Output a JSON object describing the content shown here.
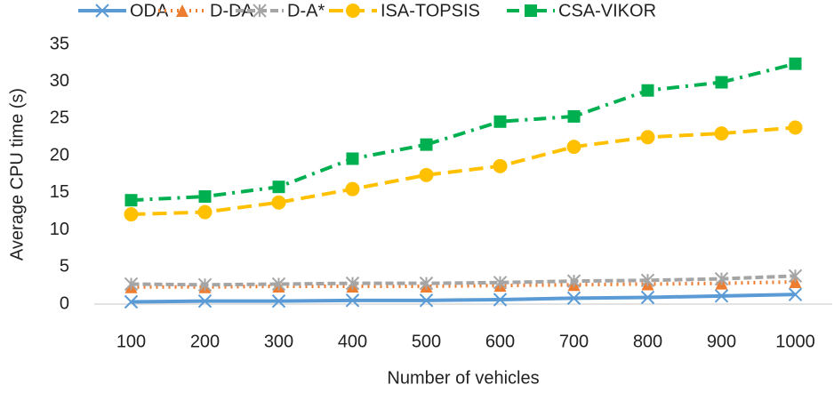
{
  "chart_data": {
    "type": "line",
    "x_label": "Number of vehicles",
    "y_label": "Average CPU time (s)",
    "categories": [
      "100",
      "200",
      "300",
      "400",
      "500",
      "600",
      "700",
      "800",
      "900",
      "1000"
    ],
    "ylim": [
      0,
      35
    ],
    "yticks": [
      0,
      5,
      10,
      15,
      20,
      25,
      30,
      35
    ],
    "grid": false,
    "legend": "top",
    "series": [
      {
        "name": "ODA",
        "color": "#5b9bd5",
        "dash": "solid",
        "marker": "x",
        "values": [
          0.3,
          0.4,
          0.4,
          0.5,
          0.5,
          0.6,
          0.8,
          0.9,
          1.1,
          1.3
        ]
      },
      {
        "name": "D-DA",
        "color": "#ed7d31",
        "dash": "dot",
        "marker": "triangle",
        "values": [
          2.3,
          2.3,
          2.4,
          2.4,
          2.4,
          2.5,
          2.6,
          2.7,
          2.8,
          3.0
        ]
      },
      {
        "name": "D-A*",
        "color": "#a5a5a5",
        "dash": "dash",
        "marker": "star",
        "values": [
          2.7,
          2.6,
          2.7,
          2.8,
          2.8,
          2.9,
          3.1,
          3.2,
          3.4,
          3.8
        ]
      },
      {
        "name": "ISA-TOPSIS",
        "color": "#ffc000",
        "dash": "longdash",
        "marker": "circle",
        "values": [
          12.1,
          12.4,
          13.7,
          15.5,
          17.4,
          18.6,
          21.2,
          22.5,
          23.0,
          23.8
        ]
      },
      {
        "name": "CSA-VIKOR",
        "color": "#00b050",
        "dash": "dashdot",
        "marker": "square",
        "values": [
          14.0,
          14.5,
          15.8,
          19.6,
          21.5,
          24.6,
          25.3,
          28.8,
          29.9,
          32.4
        ]
      }
    ]
  }
}
